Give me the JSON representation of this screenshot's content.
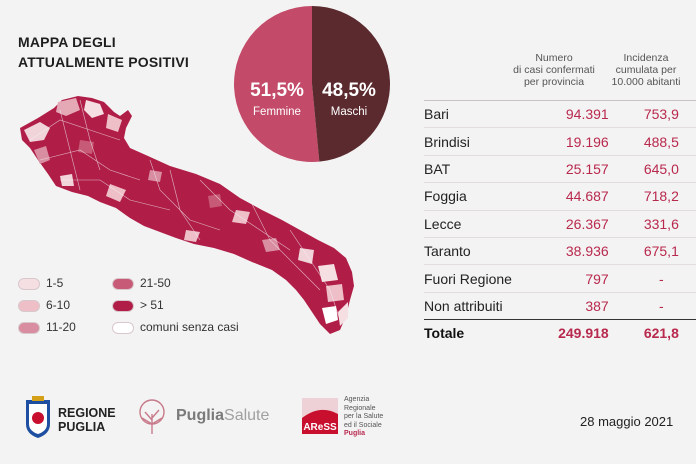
{
  "title_line1": "MAPPA DEGLI",
  "title_line2": "ATTUALMENTE POSITIVI",
  "pie": {
    "female_pct": "51,5%",
    "female_label": "Femmine",
    "male_pct": "48,5%",
    "male_label": "Maschi",
    "female_color": "#c34a68",
    "male_color": "#5a2a2e"
  },
  "columns": {
    "c1_line1": "Numero",
    "c1_line2": "di casi confermati",
    "c1_line3": "per provincia",
    "c2_line1": "Incidenza",
    "c2_line2": "cumulata per",
    "c2_line3": "10.000 abitanti"
  },
  "rows": [
    {
      "name": "Bari",
      "cases": "94.391",
      "incidence": "753,9"
    },
    {
      "name": "Brindisi",
      "cases": "19.196",
      "incidence": "488,5"
    },
    {
      "name": "BAT",
      "cases": "25.157",
      "incidence": "645,0"
    },
    {
      "name": "Foggia",
      "cases": "44.687",
      "incidence": "718,2"
    },
    {
      "name": "Lecce",
      "cases": "26.367",
      "incidence": "331,6"
    },
    {
      "name": "Taranto",
      "cases": "38.936",
      "incidence": "675,1"
    },
    {
      "name": "Fuori Regione",
      "cases": "797",
      "incidence": "-"
    },
    {
      "name": "Non attribuiti",
      "cases": "387",
      "incidence": "-"
    }
  ],
  "total": {
    "name": "Totale",
    "cases": "249.918",
    "incidence": "621,8"
  },
  "legend": [
    {
      "label": "1-5",
      "color": "#f6dfe2"
    },
    {
      "label": "6-10",
      "color": "#eebfc7"
    },
    {
      "label": "11-20",
      "color": "#d98da0"
    },
    {
      "label": "21-50",
      "color": "#c75a76"
    },
    {
      "label": "> 51",
      "color": "#b01e48"
    },
    {
      "label": "comuni senza casi",
      "color": "#ffffff"
    }
  ],
  "map_color": "#b01e48",
  "footer": {
    "regione_line1": "REGIONE",
    "regione_line2": "PUGLIA",
    "puglia": "Puglia",
    "salute": "Salute",
    "ares_logo": "AReSS",
    "ares_l1": "Agenzia",
    "ares_l2": "Regionale",
    "ares_l3": "per la Salute",
    "ares_l4": "ed il Sociale",
    "ares_l5": "Puglia",
    "date": "28 maggio 2021"
  },
  "chart_data": {
    "type": "pie",
    "categories": [
      "Femmine",
      "Maschi"
    ],
    "values": [
      51.5,
      48.5
    ]
  }
}
